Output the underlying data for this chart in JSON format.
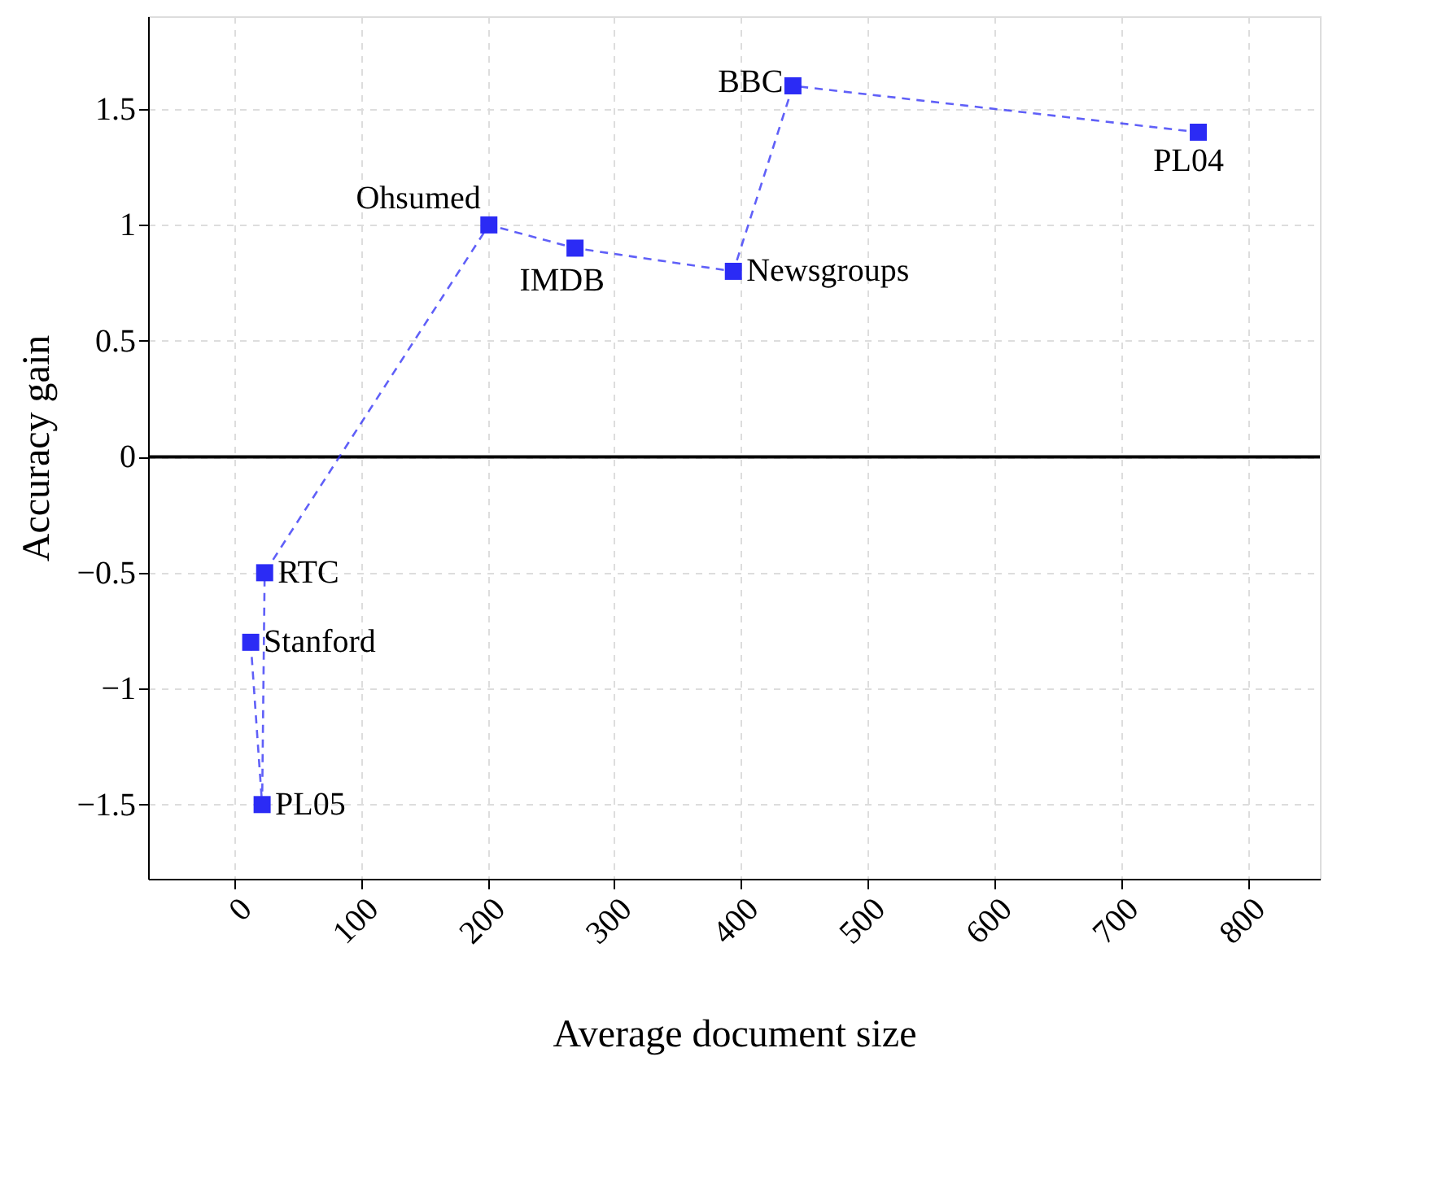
{
  "chart_data": {
    "type": "line",
    "xlabel": "Average document size",
    "ylabel": "Accuracy gain",
    "x": [
      13,
      22,
      24,
      201,
      269,
      394,
      441,
      761
    ],
    "series": [
      {
        "color": "#2b2bf5",
        "values": [
          -0.8,
          -1.5,
          -0.5,
          1.0,
          0.9,
          0.8,
          1.6,
          1.4
        ]
      }
    ],
    "xlim": [
      -68,
      857
    ],
    "xticks": [
      0,
      100,
      200,
      300,
      400,
      500,
      600,
      700,
      800
    ],
    "ylim": [
      -1.82,
      1.9
    ],
    "yticks": [
      {
        "value": -1.5,
        "label": "−1.5"
      },
      {
        "value": -1,
        "label": "−1"
      },
      {
        "value": -0.5,
        "label": "−0.5"
      },
      0,
      0.5,
      1,
      1.5
    ],
    "ref_lines": [
      {
        "axis": "y",
        "value": 0,
        "color": "#000000",
        "line_style": "solid"
      }
    ],
    "annotations": [
      {
        "text": "Stanford",
        "x": 13,
        "y": -0.8
      },
      {
        "text": "PL05",
        "x": 22,
        "y": -1.5
      },
      {
        "text": "RTC",
        "x": 24,
        "y": -0.5
      },
      {
        "text": "Ohsumed",
        "x": 201,
        "y": 1.0
      },
      {
        "text": "IMDB",
        "x": 269,
        "y": 0.9
      },
      {
        "text": "Newsgroups",
        "x": 394,
        "y": 0.8
      },
      {
        "text": "BBC",
        "x": 441,
        "y": 1.6
      },
      {
        "text": "PL04",
        "x": 761,
        "y": 1.4
      }
    ],
    "grid": true,
    "marker": "square",
    "line_style": "dashed"
  }
}
